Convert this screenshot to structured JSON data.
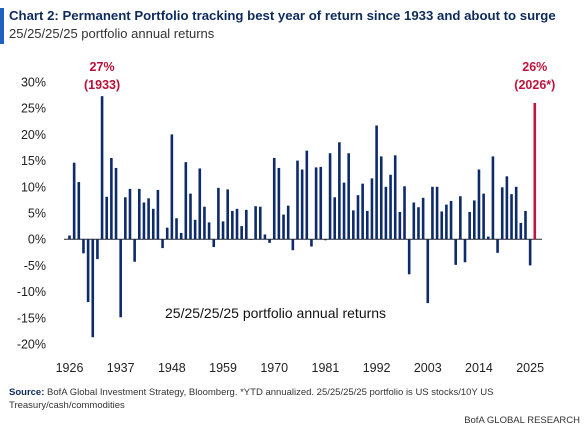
{
  "header": {
    "title": "Chart 2: Permanent Portfolio tracking best year of return since 1933 and about to surge",
    "subtitle": "25/25/25/25 portfolio annual returns"
  },
  "footer": {
    "source_label": "Source:",
    "source_text": "BofA Global Investment Strategy, Bloomberg. *YTD annualized. 25/25/25/25 portfolio is US stocks/10Y US Treasury/cash/commodities",
    "brand": "BofA GLOBAL RESEARCH"
  },
  "colors": {
    "bar": "#0d2a6b",
    "highlight": "#c0143c",
    "accent": "#1f5fbf",
    "annotation_1933": "#b5123a",
    "annotation_2026": "#c0143c"
  },
  "chart_data": {
    "type": "bar",
    "title": "Chart 2: Permanent Portfolio tracking best year of return since 1933 and about to surge",
    "subtitle": "25/25/25/25 portfolio annual returns",
    "inner_label": "25/25/25/25 portfolio annual returns",
    "xlabel": "",
    "ylabel": "",
    "ylim": [
      -20,
      30
    ],
    "yticks": [
      -20,
      -15,
      -10,
      -5,
      0,
      5,
      10,
      15,
      20,
      25,
      30
    ],
    "ytick_labels": [
      "-20%",
      "-15%",
      "-10%",
      "-5%",
      "0%",
      "5%",
      "10%",
      "15%",
      "20%",
      "25%",
      "30%"
    ],
    "xticks": [
      1926,
      1937,
      1948,
      1959,
      1970,
      1981,
      1992,
      2003,
      2014,
      2025
    ],
    "xtick_labels": [
      "1926",
      "1937",
      "1948",
      "1959",
      "1970",
      "1981",
      "1992",
      "2003",
      "2014",
      "2025"
    ],
    "grid": false,
    "x": [
      1926,
      1927,
      1928,
      1929,
      1930,
      1931,
      1932,
      1933,
      1934,
      1935,
      1936,
      1937,
      1938,
      1939,
      1940,
      1941,
      1942,
      1943,
      1944,
      1945,
      1946,
      1947,
      1948,
      1949,
      1950,
      1951,
      1952,
      1953,
      1954,
      1955,
      1956,
      1957,
      1958,
      1959,
      1960,
      1961,
      1962,
      1963,
      1964,
      1965,
      1966,
      1967,
      1968,
      1969,
      1970,
      1971,
      1972,
      1973,
      1974,
      1975,
      1976,
      1977,
      1978,
      1979,
      1980,
      1981,
      1982,
      1983,
      1984,
      1985,
      1986,
      1987,
      1988,
      1989,
      1990,
      1991,
      1992,
      1993,
      1994,
      1995,
      1996,
      1997,
      1998,
      1999,
      2000,
      2001,
      2002,
      2003,
      2004,
      2005,
      2006,
      2007,
      2008,
      2009,
      2010,
      2011,
      2012,
      2013,
      2014,
      2015,
      2016,
      2017,
      2018,
      2019,
      2020,
      2021,
      2022,
      2023,
      2024,
      2025,
      2026
    ],
    "values": [
      0.7,
      14.6,
      10.9,
      -2.7,
      -12.0,
      -18.7,
      -3.8,
      27.3,
      8.1,
      15.5,
      13.6,
      -14.9,
      8.0,
      9.6,
      -4.3,
      9.6,
      7.0,
      7.8,
      5.8,
      9.4,
      -1.7,
      2.2,
      20.0,
      4.0,
      1.2,
      14.7,
      8.7,
      3.7,
      13.5,
      6.2,
      3.2,
      -1.5,
      9.8,
      3.4,
      9.5,
      5.4,
      5.8,
      2.5,
      5.6,
      -0.1,
      6.3,
      6.2,
      0.9,
      -0.7,
      15.5,
      13.6,
      4.7,
      6.4,
      -2.1,
      15.0,
      13.3,
      16.9,
      -1.4,
      13.7,
      13.8,
      -0.2,
      16.4,
      8.0,
      18.5,
      10.8,
      16.4,
      5.5,
      8.4,
      10.6,
      5.4,
      11.6,
      21.7,
      15.8,
      10.0,
      12.3,
      16.0,
      5.2,
      10.1,
      -6.7,
      7.0,
      6.1,
      7.9,
      -12.2,
      10.0,
      10.0,
      5.3,
      6.6,
      7.3,
      -4.9,
      8.2,
      -4.4,
      5.2,
      7.4,
      13.3,
      8.7,
      0.5,
      15.8,
      -2.6,
      9.9,
      12.0,
      8.6,
      10.0,
      3.1,
      5.4,
      -5.0,
      26.0
    ],
    "bar_color": "#0d2a6b",
    "highlight_color": "#c0143c",
    "annotations": [
      {
        "x": 1933,
        "value_label": "27%",
        "year_label": "(1933)",
        "color": "#b5123a"
      },
      {
        "x": 2026,
        "value_label": "26%",
        "year_label": "(2026*)",
        "color": "#c0143c"
      }
    ]
  }
}
